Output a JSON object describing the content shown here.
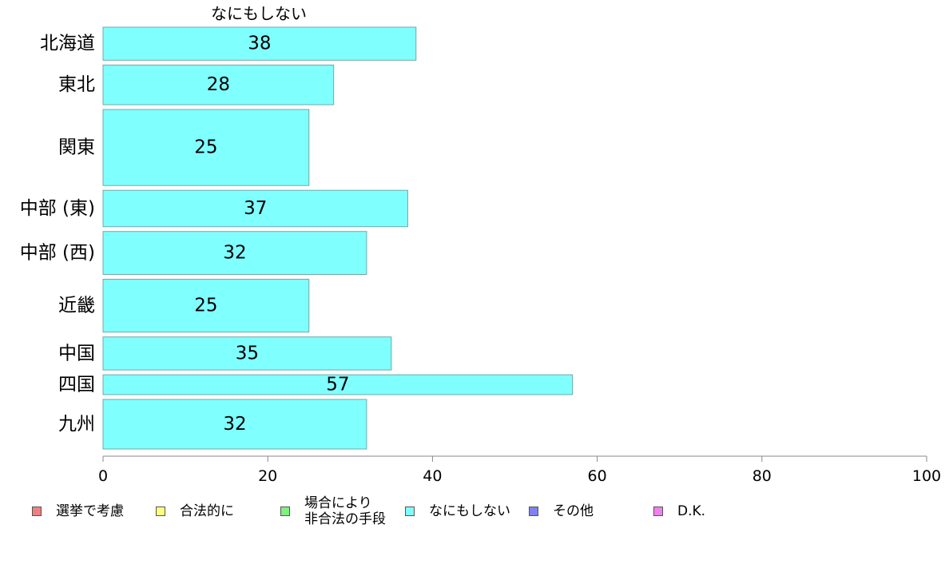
{
  "chart_data": {
    "type": "bar",
    "orientation": "horizontal",
    "title": "なにもしない",
    "categories": [
      "北海道",
      "東北",
      "関東",
      "中部 (東)",
      "中部 (西)",
      "近畿",
      "中国",
      "四国",
      "九州"
    ],
    "values": [
      38,
      28,
      25,
      37,
      32,
      25,
      35,
      57,
      32
    ],
    "value_labels": [
      "38",
      "28",
      "25",
      "37",
      "32",
      "25",
      "35",
      "57",
      "32"
    ],
    "bar_weights": [
      1.0,
      1.2,
      2.3,
      1.1,
      1.3,
      1.6,
      1.0,
      0.6,
      1.5
    ],
    "xlim": [
      0,
      100
    ],
    "xticks": [
      0,
      20,
      40,
      60,
      80,
      100
    ],
    "xtick_labels": [
      "0",
      "20",
      "40",
      "60",
      "80",
      "100"
    ],
    "grid": false,
    "bar_color": "#80FFFF",
    "bar_edge_color": "#6FA8A8",
    "legend": {
      "placement": "bottom",
      "entries": [
        {
          "label": "選挙で考慮",
          "color": "#F08080"
        },
        {
          "label": "合法的に",
          "color": "#FFFF80"
        },
        {
          "label": "場合により\n非合法の手段",
          "color": "#80F080"
        },
        {
          "label": "なにもしない",
          "color": "#80FFFF"
        },
        {
          "label": "その他",
          "color": "#8080F0"
        },
        {
          "label": "D.K.",
          "color": "#F080F0"
        }
      ]
    }
  }
}
